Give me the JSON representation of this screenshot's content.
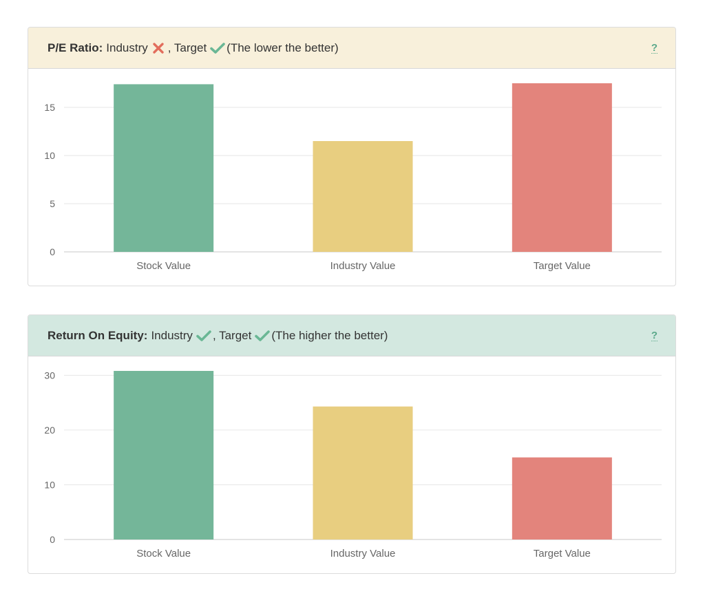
{
  "colors": {
    "stock": "#74b699",
    "industry": "#e8ce80",
    "target": "#e3847c",
    "cross": "#e26d5c",
    "check": "#6ab795",
    "help": "#5aa88a"
  },
  "panels": [
    {
      "metric": "P/E Ratio:",
      "industry_label": "Industry",
      "industry_mark": "cross-icon",
      "separator": ", Target",
      "target_mark": "check-icon",
      "note": "(The lower the better)",
      "help": "?",
      "header_bg": "#f8f0db"
    },
    {
      "metric": "Return On Equity:",
      "industry_label": "Industry",
      "industry_mark": "check-icon",
      "separator": ", Target",
      "target_mark": "check-icon",
      "note": "(The higher the better)",
      "help": "?",
      "header_bg": "#d3e8e0"
    }
  ],
  "chart_data": [
    {
      "type": "bar",
      "categories": [
        "Stock Value",
        "Industry Value",
        "Target Value"
      ],
      "values": [
        17.4,
        11.5,
        17.5
      ],
      "ylim": [
        0,
        17.5
      ],
      "yticks": [
        0,
        5,
        10,
        15
      ],
      "grid": true
    },
    {
      "type": "bar",
      "categories": [
        "Stock Value",
        "Industry Value",
        "Target Value"
      ],
      "values": [
        30.8,
        24.3,
        15.0
      ],
      "ylim": [
        0,
        30.8
      ],
      "yticks": [
        0,
        10,
        20,
        30
      ],
      "grid": true
    }
  ]
}
